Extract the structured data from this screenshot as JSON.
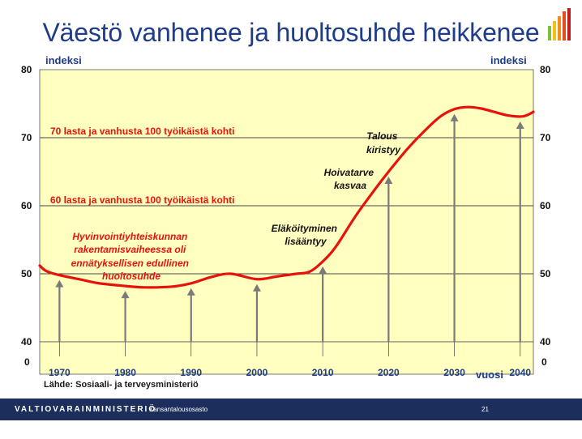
{
  "slide": {
    "title": "Väestö vanhenee ja huoltosuhde heikkenee",
    "source": "Lähde: Sosiaali- ja terveysministeriö",
    "footer_ministry": "VALTIOVARAINMINISTERIÖ",
    "footer_department": "Kansantalousosasto",
    "page_number": "21"
  },
  "chart_data": {
    "type": "line",
    "ylabel_left": "indeksi",
    "ylabel_right": "indeksi",
    "xlabel": "vuosi",
    "ylim": [
      40,
      80
    ],
    "y_ticks": [
      "40",
      "50",
      "60",
      "70",
      "80"
    ],
    "y_zero_label": "0",
    "x_ticks": [
      "1970",
      "1980",
      "1990",
      "2000",
      "2010",
      "2020",
      "2030",
      "2040"
    ],
    "xlim": [
      1967,
      2042
    ],
    "reference_lines": [
      {
        "y": 60,
        "label": "60 lasta ja vanhusta 100 työikäistä kohti"
      },
      {
        "y": 70,
        "label": "70 lasta ja vanhusta 100 työikäistä kohti"
      }
    ],
    "series": [
      {
        "x": [
          1967,
          1968,
          1970,
          1973,
          1976,
          1980,
          1983,
          1987,
          1990,
          1993,
          1996,
          2000,
          2003,
          2006,
          2008,
          2010,
          2012,
          2015,
          2018,
          2020,
          2023,
          2026,
          2028,
          2030,
          2032,
          2034,
          2036,
          2038,
          2040,
          2041,
          2042
        ],
        "y": [
          51.2,
          50.4,
          49.8,
          49.2,
          48.6,
          48.2,
          48.0,
          48.1,
          48.6,
          49.5,
          50.0,
          49.2,
          49.6,
          50.0,
          50.3,
          51.8,
          54.0,
          58.5,
          62.5,
          65.0,
          68.5,
          71.5,
          73.2,
          74.2,
          74.5,
          74.3,
          73.8,
          73.3,
          73.1,
          73.3,
          73.8
        ]
      }
    ],
    "event_arrows": [
      {
        "x": 1970,
        "y": 49.8
      },
      {
        "x": 1980,
        "y": 48.2
      },
      {
        "x": 1990,
        "y": 48.6
      },
      {
        "x": 2000,
        "y": 49.2
      },
      {
        "x": 2010,
        "y": 51.8
      },
      {
        "x": 2020,
        "y": 65.0
      },
      {
        "x": 2030,
        "y": 74.2
      },
      {
        "x": 2040,
        "y": 73.1
      }
    ],
    "annotations": [
      {
        "text": [
          "Hyvinvointiyhteiskunnan",
          "rakentamisvaiheessa oli",
          "ennätyksellisen edullinen",
          "huoltosuhde"
        ],
        "color": "#e8120c"
      },
      {
        "text": [
          "Eläköityminen",
          "lisääntyy"
        ],
        "color": "#111111"
      },
      {
        "text": [
          "Hoivatarve",
          "kasvaa"
        ],
        "color": "#111111"
      },
      {
        "text": [
          "Talous",
          "kiristyy"
        ],
        "color": "#111111"
      }
    ],
    "colors": {
      "plot_background": "#ffffc0",
      "line": "#e8120c",
      "reference_line_label": "#e8120c",
      "arrow": "#7a7a7a",
      "title": "#1f3c88",
      "axis_label": "#1f3c88",
      "footer": "#1c2f5c"
    }
  }
}
